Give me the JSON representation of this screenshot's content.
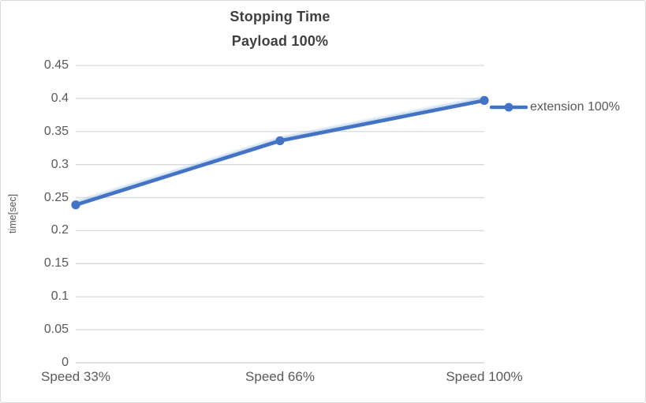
{
  "chart_data": {
    "type": "line",
    "title": "Stopping Time",
    "subtitle": "Payload 100%",
    "xlabel": "",
    "ylabel": "time[sec]",
    "categories": [
      "Speed 33%",
      "Speed 66%",
      "Speed 100%"
    ],
    "series": [
      {
        "name": "extension 100%",
        "values": [
          0.239,
          0.336,
          0.397
        ]
      }
    ],
    "ylim": [
      0,
      0.45
    ],
    "yticks": [
      0,
      0.05,
      0.1,
      0.15,
      0.2,
      0.25,
      0.3,
      0.35,
      0.4,
      0.45
    ],
    "grid": true,
    "legend_position": "right",
    "marker": "circle",
    "colors": {
      "series_line": "#4472C4",
      "series_halo": "#9DC3E6",
      "gridline": "#D9D9D9",
      "baseline": "#C9C9C9",
      "tick_text": "#595959",
      "title_text": "#404040",
      "chart_border": "#D9D9D9",
      "background": "#FFFFFF"
    }
  }
}
